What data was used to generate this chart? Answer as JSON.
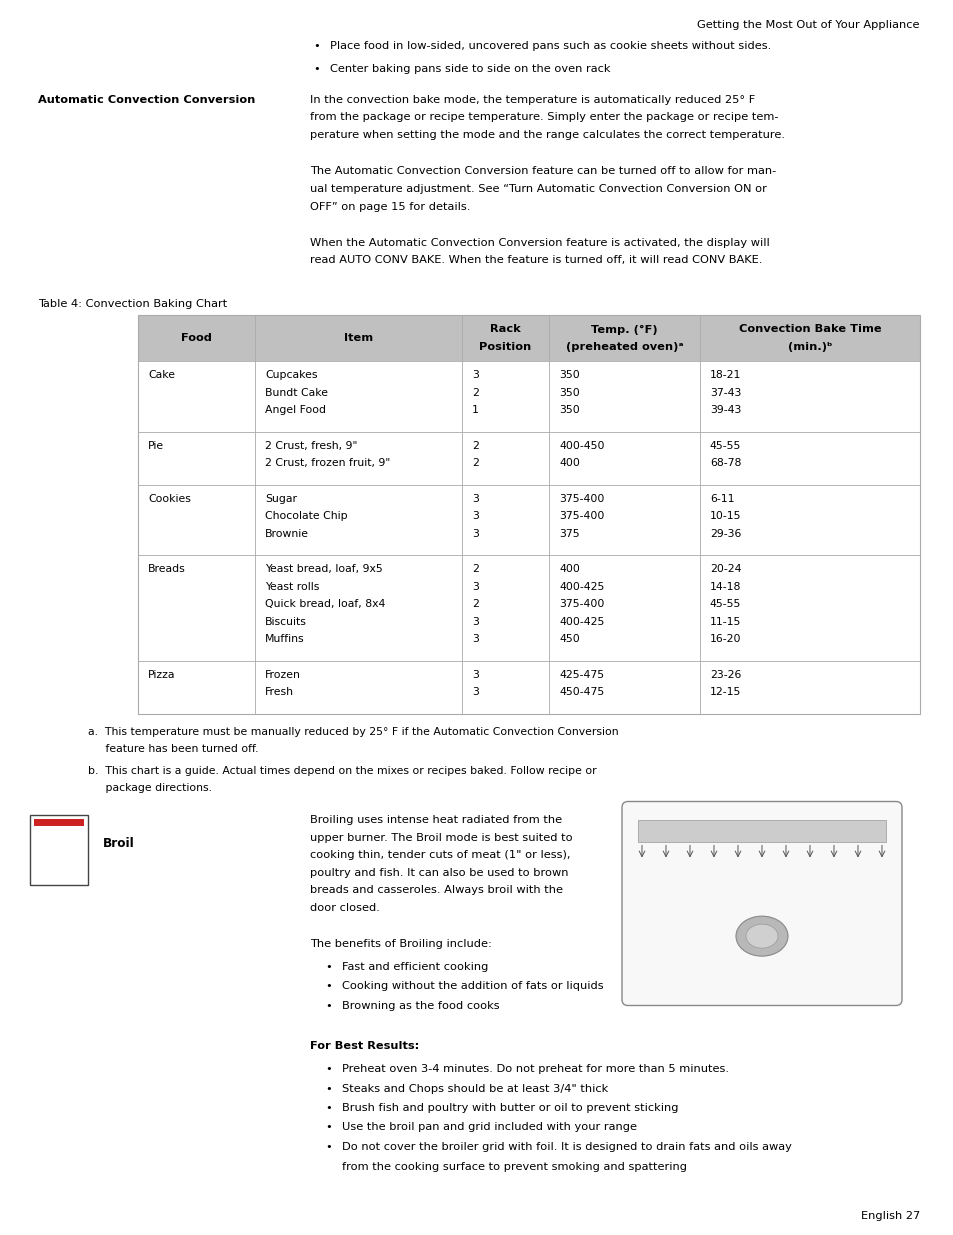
{
  "page_title": "Getting the Most Out of Your Appliance",
  "bullets_top": [
    "Place food in low-sided, uncovered pans such as cookie sheets without sides.",
    "Center baking pans side to side on the oven rack"
  ],
  "section_label": "Automatic Convection Conversion",
  "section_text1_lines": [
    "In the convection bake mode, the temperature is automatically reduced 25° F",
    "from the package or recipe temperature. Simply enter the package or recipe tem-",
    "perature when setting the mode and the range calculates the correct temperature."
  ],
  "section_text2_lines": [
    "The Automatic Convection Conversion feature can be turned off to allow for man-",
    "ual temperature adjustment. See “Turn Automatic Convection Conversion ON or",
    "OFF” on page 15 for details."
  ],
  "section_text3_lines": [
    "When the Automatic Convection Conversion feature is activated, the display will",
    "read AUTO CONV BAKE. When the feature is turned off, it will read CONV BAKE."
  ],
  "table_title": "Table 4: Convection Baking Chart",
  "table_headers": [
    "Food",
    "Item",
    "Rack\nPosition",
    "Temp. (°F)\n(preheated oven)ᵃ",
    "Convection Bake Time\n(min.)ᵇ"
  ],
  "table_data": [
    [
      "Cake",
      "Cupcakes\nBundt Cake\nAngel Food",
      "3\n2\n1",
      "350\n350\n350",
      "18-21\n37-43\n39-43"
    ],
    [
      "Pie",
      "2 Crust, fresh, 9\"\n2 Crust, frozen fruit, 9\"",
      "2\n2",
      "400-450\n400",
      "45-55\n68-78"
    ],
    [
      "Cookies",
      "Sugar\nChocolate Chip\nBrownie",
      "3\n3\n3",
      "375-400\n375-400\n375",
      "6-11\n10-15\n29-36"
    ],
    [
      "Breads",
      "Yeast bread, loaf, 9x5\nYeast rolls\nQuick bread, loaf, 8x4\nBiscuits\nMuffins",
      "2\n3\n2\n3\n3",
      "400\n400-425\n375-400\n400-425\n450",
      "20-24\n14-18\n45-55\n11-15\n16-20"
    ],
    [
      "Pizza",
      "Frozen\nFresh",
      "3\n3",
      "425-475\n450-475",
      "23-26\n12-15"
    ]
  ],
  "footnote_a": "a.  This temperature must be manually reduced by 25° F if the Automatic Convection Conversion",
  "footnote_a2": "     feature has been turned off.",
  "footnote_b": "b.  This chart is a guide. Actual times depend on the mixes or recipes baked. Follow recipe or",
  "footnote_b2": "     package directions.",
  "broil_label": "Broil",
  "broil_text_lines": [
    "Broiling uses intense heat radiated from the",
    "upper burner. The Broil mode is best suited to",
    "cooking thin, tender cuts of meat (1\" or less),",
    "poultry and fish. It can also be used to brown",
    "breads and casseroles. Always broil with the",
    "door closed."
  ],
  "broil_benefits_intro": "The benefits of Broiling include:",
  "broil_bullets": [
    "Fast and efficient cooking",
    "Cooking without the addition of fats or liquids",
    "Browning as the food cooks"
  ],
  "best_results_label": "For Best Results:",
  "best_results_bullets": [
    "Preheat oven 3-4 minutes. Do not preheat for more than 5 minutes.",
    "Steaks and Chops should be at least 3/4\" thick",
    "Brush fish and poultry with butter or oil to prevent sticking",
    "Use the broil pan and grid included with your range",
    "Do not cover the broiler grid with foil. It is designed to drain fats and oils away",
    "from the cooking surface to prevent smoking and spattering"
  ],
  "best_results_bullet_indent": [
    0,
    0,
    0,
    0,
    0,
    1
  ],
  "page_footer": "English 27",
  "header_bg": "#c0c0c0",
  "row_border": "#aaaaaa",
  "text_color": "#000000",
  "bg_color": "#ffffff"
}
